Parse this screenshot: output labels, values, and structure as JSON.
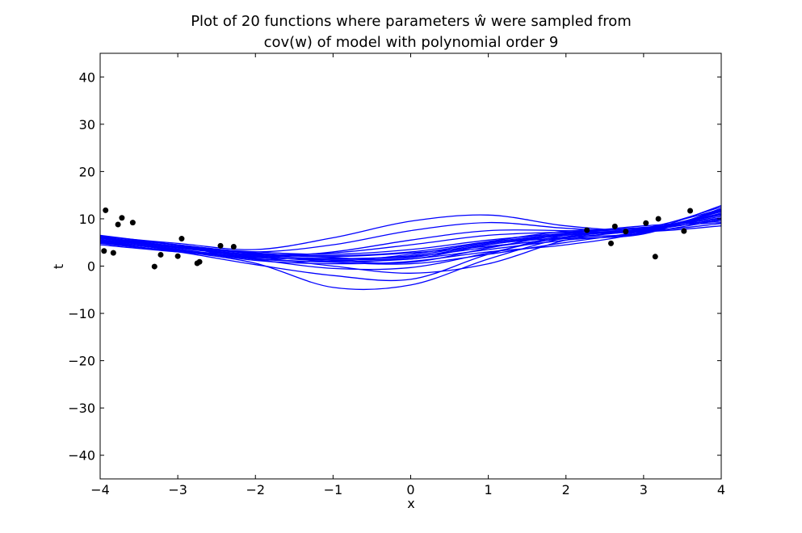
{
  "chart_data": {
    "type": "line",
    "title_line1": "Plot of 20 functions where parameters ŵ were sampled from",
    "title_line2": "cov(w) of model with polynomial order 9",
    "xlabel": "x",
    "ylabel": "t",
    "xlim": [
      -4,
      4
    ],
    "ylim": [
      -45,
      45
    ],
    "x_ticks": [
      -4,
      -3,
      -2,
      -1,
      0,
      1,
      2,
      3,
      4
    ],
    "y_ticks": [
      -40,
      -30,
      -20,
      -10,
      0,
      10,
      20,
      30,
      40
    ],
    "x_tick_labels": [
      "−4",
      "−3",
      "−2",
      "−1",
      "0",
      "1",
      "2",
      "3",
      "4"
    ],
    "y_tick_labels": [
      "−40",
      "−30",
      "−20",
      "−10",
      "0",
      "10",
      "20",
      "30",
      "40"
    ],
    "grid": false,
    "line_color": "#0000ff",
    "point_color": "#000000",
    "points": {
      "x": [
        -3.95,
        -3.93,
        -3.83,
        -3.77,
        -3.72,
        -3.58,
        -3.3,
        -3.22,
        -3.0,
        -2.95,
        -2.75,
        -2.72,
        -2.45,
        -2.28,
        2.27,
        2.58,
        2.63,
        2.77,
        3.03,
        3.15,
        3.19,
        3.52,
        3.6
      ],
      "y": [
        3.2,
        11.8,
        2.8,
        8.8,
        10.2,
        9.2,
        -0.1,
        2.4,
        2.1,
        5.8,
        0.6,
        0.9,
        4.3,
        4.1,
        7.6,
        4.8,
        8.4,
        7.3,
        9.1,
        2.0,
        10.0,
        7.4,
        11.7
      ]
    },
    "curves": {
      "x": [
        -4,
        -3,
        -2,
        -1,
        0,
        1,
        2,
        3,
        4
      ],
      "series": [
        {
          "y": [
            5.5,
            3.2,
            0.6,
            -4.5,
            -4.0,
            1.5,
            6.0,
            8.0,
            12.0
          ]
        },
        {
          "y": [
            5.0,
            3.0,
            0.3,
            -2.0,
            -2.8,
            2.5,
            6.5,
            7.5,
            11.5
          ]
        },
        {
          "y": [
            6.0,
            4.0,
            2.0,
            0.0,
            -1.5,
            0.5,
            5.5,
            7.8,
            10.5
          ]
        },
        {
          "y": [
            6.3,
            4.8,
            3.5,
            6.0,
            9.5,
            10.8,
            8.5,
            7.5,
            9.0
          ]
        },
        {
          "y": [
            6.0,
            4.5,
            3.0,
            4.5,
            7.5,
            9.2,
            8.0,
            7.3,
            8.5
          ]
        },
        {
          "y": [
            5.5,
            4.0,
            2.5,
            2.8,
            4.5,
            6.5,
            7.2,
            7.6,
            10.0
          ]
        },
        {
          "y": [
            5.0,
            3.5,
            1.5,
            1.0,
            2.5,
            5.0,
            6.8,
            7.7,
            11.0
          ]
        },
        {
          "y": [
            4.5,
            3.0,
            1.8,
            1.5,
            2.0,
            4.0,
            6.0,
            7.8,
            12.5
          ]
        },
        {
          "y": [
            6.5,
            4.5,
            2.8,
            1.8,
            1.5,
            4.5,
            6.5,
            7.5,
            10.0
          ]
        },
        {
          "y": [
            5.8,
            3.8,
            2.2,
            1.0,
            1.5,
            3.5,
            5.5,
            7.0,
            11.8
          ]
        },
        {
          "y": [
            6.2,
            4.2,
            3.0,
            2.5,
            3.5,
            5.5,
            7.0,
            8.5,
            9.5
          ]
        },
        {
          "y": [
            5.2,
            3.5,
            1.2,
            0.5,
            1.0,
            3.0,
            4.5,
            7.2,
            12.8
          ]
        },
        {
          "y": [
            6.0,
            4.0,
            2.0,
            3.0,
            5.5,
            7.5,
            7.5,
            7.2,
            9.8
          ]
        },
        {
          "y": [
            5.6,
            3.6,
            1.6,
            0.8,
            0.5,
            2.5,
            5.0,
            7.4,
            11.2
          ]
        },
        {
          "y": [
            4.8,
            3.2,
            2.4,
            2.0,
            2.8,
            4.2,
            5.8,
            6.8,
            12.2
          ]
        },
        {
          "y": [
            6.4,
            4.4,
            2.6,
            1.2,
            0.8,
            3.8,
            6.8,
            8.2,
            9.2
          ]
        },
        {
          "y": [
            5.3,
            3.4,
            1.4,
            -0.5,
            -0.3,
            2.8,
            6.2,
            7.9,
            10.8
          ]
        },
        {
          "y": [
            5.9,
            3.9,
            2.3,
            1.6,
            2.2,
            4.8,
            6.6,
            7.6,
            11.6
          ]
        },
        {
          "y": [
            6.1,
            4.1,
            2.7,
            2.2,
            3.0,
            5.2,
            7.4,
            8.0,
            10.2
          ]
        },
        {
          "y": [
            5.4,
            3.3,
            1.9,
            1.3,
            1.8,
            4.6,
            6.1,
            7.1,
            12.0
          ]
        }
      ]
    }
  }
}
